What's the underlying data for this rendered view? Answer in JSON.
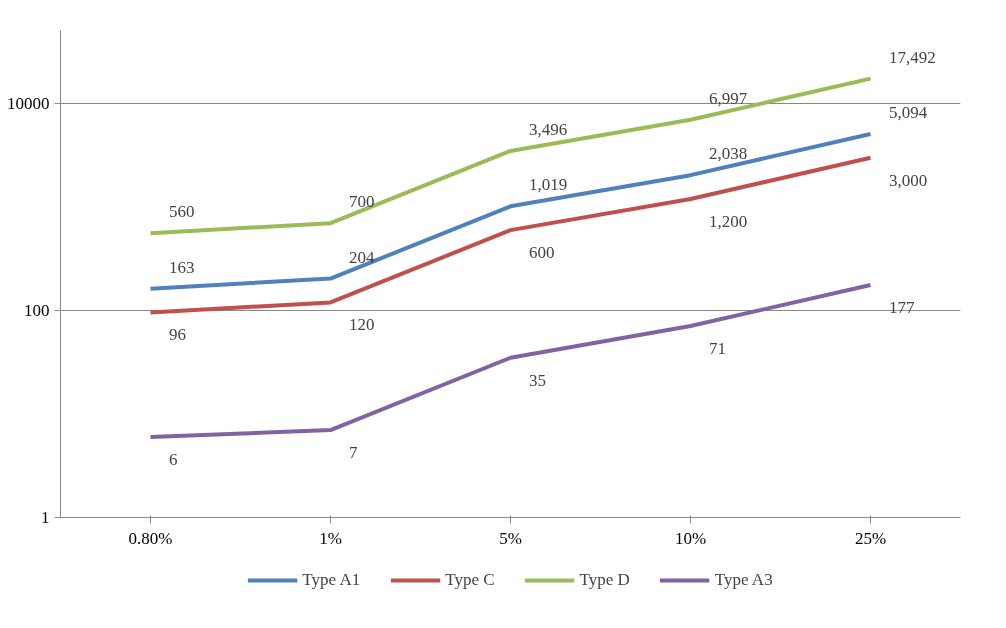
{
  "chart_data": {
    "type": "line",
    "categories": [
      "0.80%",
      "1%",
      "5%",
      "10%",
      "25%"
    ],
    "series": [
      {
        "name": "Type A1",
        "color": "#4f81bd",
        "values": [
          163,
          204,
          1019,
          2038,
          5094
        ],
        "value_labels": [
          "163",
          "204",
          "1,019",
          "2,038",
          "5,094"
        ]
      },
      {
        "name": "Type C",
        "color": "#c0504d",
        "values": [
          96,
          120,
          600,
          1200,
          3000
        ],
        "value_labels": [
          "96",
          "120",
          "600",
          "1,200",
          "3,000"
        ]
      },
      {
        "name": "Type D",
        "color": "#9bbb59",
        "values": [
          560,
          700,
          3496,
          6997,
          17492
        ],
        "value_labels": [
          "560",
          "700",
          "3,496",
          "6,997",
          "17,492"
        ]
      },
      {
        "name": "Type A3",
        "color": "#8064a2",
        "values": [
          6,
          7,
          35,
          71,
          177
        ],
        "value_labels": [
          "6",
          "7",
          "35",
          "71",
          "177"
        ]
      }
    ],
    "log": "y",
    "ylim": [
      1,
      51000
    ],
    "yticks": [
      1,
      100,
      10000
    ],
    "grid": "y",
    "legend": "bottom",
    "marker": "none",
    "line_style": "solid"
  }
}
